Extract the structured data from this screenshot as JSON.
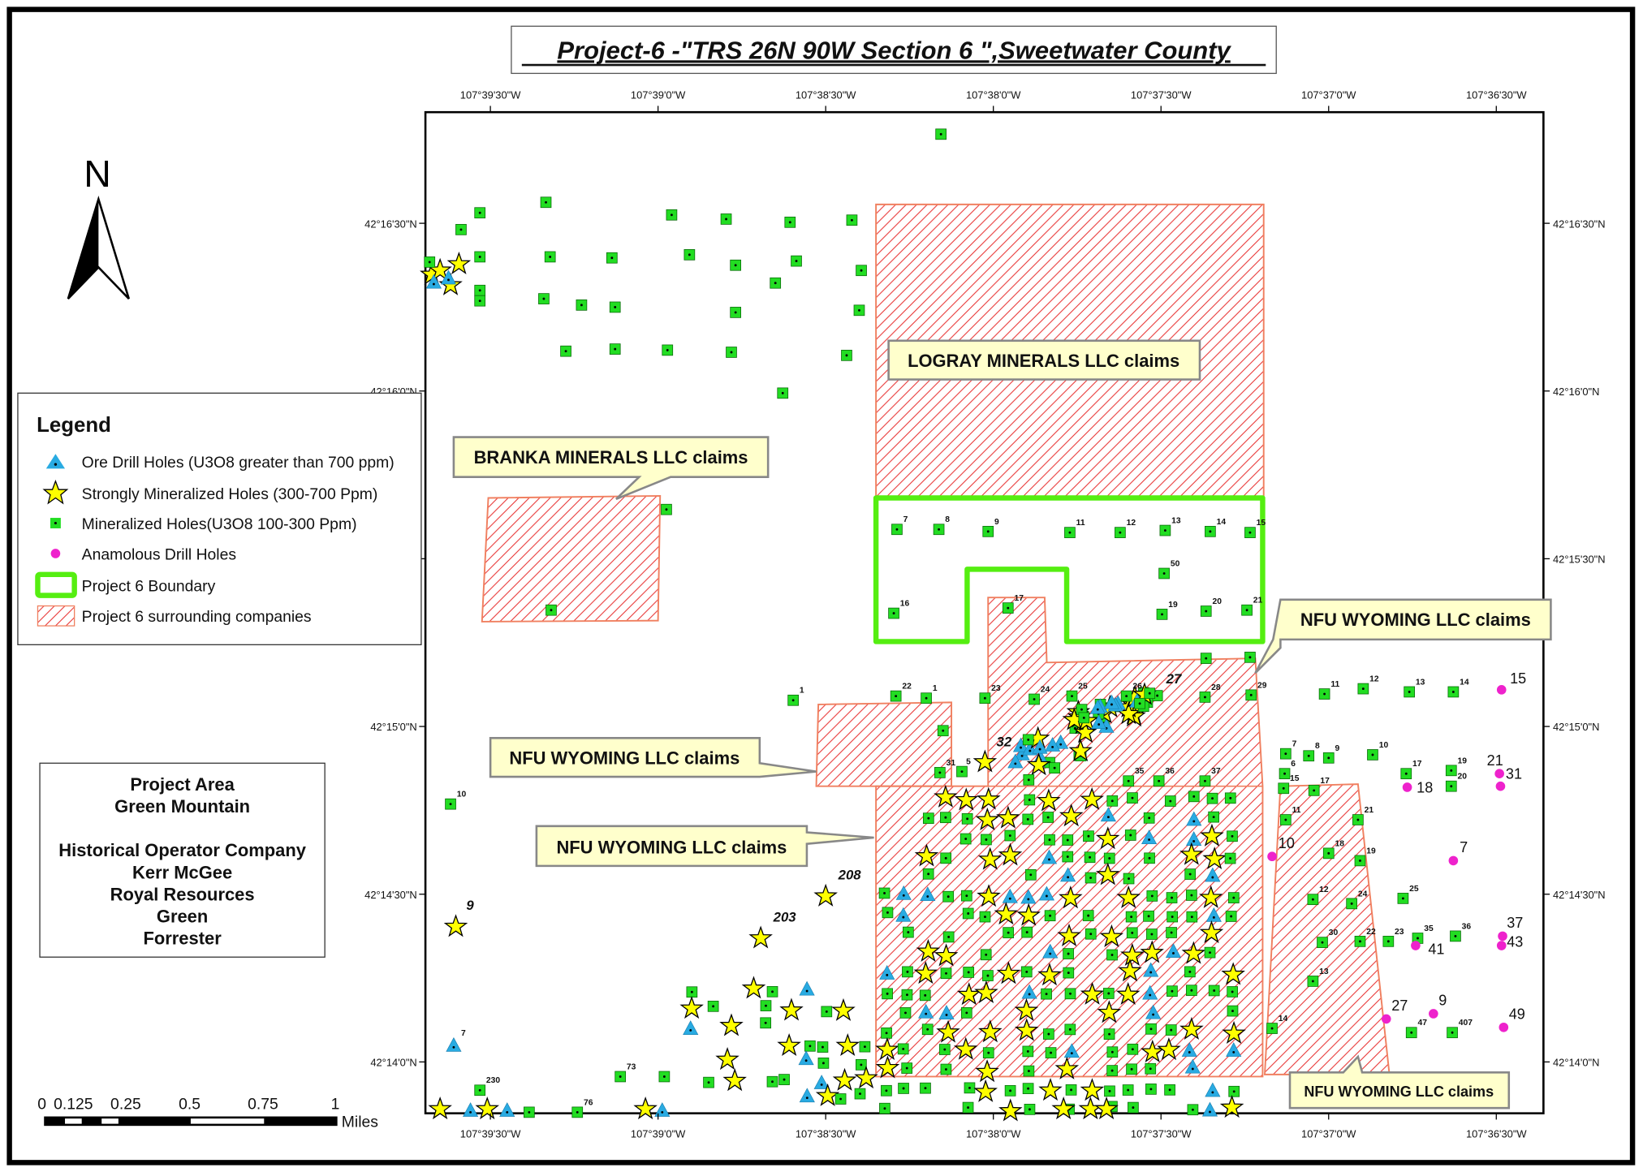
{
  "title": "Project-6 -\"TRS 26N 90W Section 6  \",Sweetwater  County",
  "north_label": "N",
  "lon_labels": [
    "107°39'30\"W",
    "107°39'0\"W",
    "107°38'30\"W",
    "107°38'0\"W",
    "107°37'30\"W",
    "107°37'0\"W",
    "107°36'30\"W"
  ],
  "lat_labels": [
    "42°16'30\"N",
    "42°16'0\"N",
    "42°15'30\"N",
    "42°15'0\"N",
    "42°14'30\"N",
    "42°14'0\"N"
  ],
  "legend": {
    "title": "Legend",
    "items": [
      "Ore Drill Holes (U3O8 greater than 700 ppm)",
      "Strongly Mineralized Holes (300-700 Ppm)",
      "Mineralized Holes(U3O8 100-300 Ppm)",
      "Anamolous Drill Holes",
      "Project 6 Boundary",
      "Project 6 surrounding companies"
    ]
  },
  "project_info": [
    "Project Area",
    "Green Mountain",
    "",
    "Historical Operator Company",
    "Kerr McGee",
    "Royal Resources",
    "Green",
    "Forrester"
  ],
  "scale_bar": {
    "labels": [
      "0",
      "0.125",
      "0.25",
      "0.5",
      "0.75",
      "1"
    ],
    "unit": "Miles"
  },
  "callouts": {
    "logray": "LOGRAY MINERALS LLC claims",
    "branka": "BRANKA MINERALS LLC claims",
    "nfu_top_right": "NFU WYOMING LLC  claims",
    "nfu_left": "NFU WYOMING LLC claims",
    "nfu_center": "NFU WYOMING LLC  claims",
    "nfu_bottom_right": "NFU WYOMING LLC claims"
  },
  "colors": {
    "ore": "#29abe2",
    "strong": "#ffff00",
    "mineralized": "#22dd22",
    "anomalous": "#ee22cc",
    "boundary": "#55ee11",
    "hatch": "#e83030",
    "callout": "#ffffcc"
  },
  "holes": {
    "mineralized_labels": [
      "7",
      "8",
      "9",
      "11",
      "12",
      "13",
      "14",
      "15",
      "50",
      "16",
      "17",
      "19",
      "20",
      "21",
      "22",
      "1",
      "23",
      "24",
      "25",
      "26",
      "28",
      "29",
      "1",
      "31",
      "35",
      "36",
      "37",
      "10",
      "230",
      "73",
      "76",
      "11",
      "12",
      "13",
      "14",
      "7",
      "8",
      "9",
      "10",
      "6",
      "15",
      "17",
      "17",
      "19",
      "20",
      "11",
      "21",
      "18",
      "19",
      "25",
      "12",
      "24",
      "30",
      "22",
      "23",
      "35",
      "36",
      "13",
      "14",
      "47",
      "407"
    ],
    "anomalous_labels": [
      "15",
      "18",
      "21",
      "31",
      "10",
      "7",
      "37",
      "43",
      "41",
      "27",
      "9",
      "49"
    ],
    "strong_labels": [
      "9",
      "203",
      "208",
      "5"
    ],
    "ore_labels": [
      "7"
    ],
    "cluster_labels": [
      "32",
      "27"
    ]
  }
}
